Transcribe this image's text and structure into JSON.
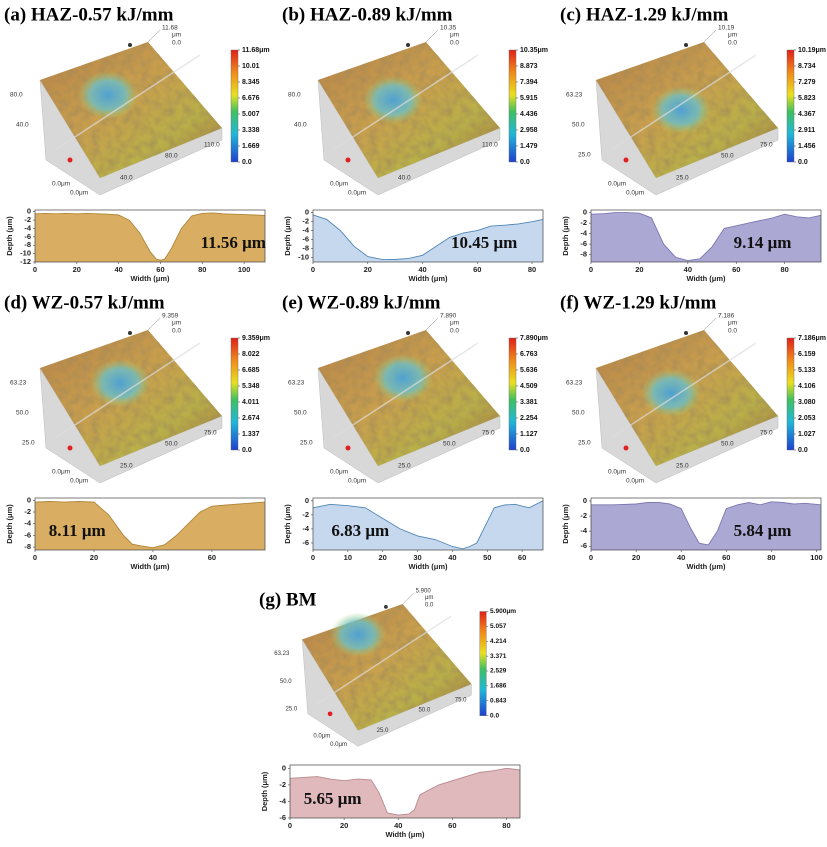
{
  "chart_data": [
    {
      "type": "area",
      "title": "(a) HAZ-0.57 kJ/mm",
      "annotation": "11.56 μm",
      "xlabel": "Width (μm)",
      "ylabel": "Depth (μm)",
      "color": "#d9ad62",
      "edge_color": "#b08638",
      "x": [
        0,
        5,
        10,
        15,
        20,
        25,
        30,
        35,
        40,
        45,
        50,
        55,
        58,
        60,
        62,
        65,
        70,
        75,
        80,
        85,
        90,
        95,
        100,
        105,
        110
      ],
      "values": [
        -0.5,
        -0.4,
        -0.5,
        -0.4,
        -0.5,
        -0.4,
        -0.5,
        -0.6,
        -0.8,
        -2,
        -5,
        -9.5,
        -11.3,
        -11.56,
        -11.3,
        -9,
        -4,
        -1,
        -0.4,
        -0.3,
        -0.5,
        -0.6,
        -0.7,
        -0.8,
        -0.9
      ],
      "xlim": [
        0,
        110
      ],
      "ylim": [
        -12,
        0.4
      ],
      "xticks": [
        0,
        20,
        40,
        60,
        80,
        100
      ],
      "yticks": [
        0,
        -2,
        -4,
        -6,
        -8,
        -10,
        -12
      ]
    },
    {
      "type": "area",
      "title": "(b) HAZ-0.89 kJ/mm",
      "annotation": "10.45 μm",
      "xlabel": "Width (μm)",
      "ylabel": "Depth (μm)",
      "color": "#c6d8ee",
      "edge_color": "#4f86b4",
      "x": [
        0,
        5,
        10,
        15,
        20,
        25,
        30,
        35,
        40,
        45,
        50,
        55,
        60,
        65,
        70,
        75,
        80,
        84
      ],
      "values": [
        -0.5,
        -1.5,
        -4,
        -7.5,
        -9.8,
        -10.4,
        -10.45,
        -10.2,
        -9.5,
        -7.5,
        -5.5,
        -4.5,
        -4,
        -3,
        -2.8,
        -2.5,
        -2,
        -1.5
      ],
      "xlim": [
        0,
        84
      ],
      "ylim": [
        -11,
        0.6
      ],
      "xticks": [
        0,
        20,
        40,
        60,
        80
      ],
      "yticks": [
        0,
        -2,
        -4,
        -6,
        -8,
        -10
      ]
    },
    {
      "type": "area",
      "title": "(c) HAZ-1.29 kJ/mm",
      "annotation": "9.14 μm",
      "xlabel": "Width (μm)",
      "ylabel": "Depth (μm)",
      "color": "#aba8d4",
      "edge_color": "#7c78b0",
      "x": [
        0,
        5,
        10,
        15,
        20,
        25,
        30,
        35,
        40,
        45,
        50,
        55,
        60,
        65,
        70,
        75,
        80,
        85,
        90,
        95
      ],
      "values": [
        -0.3,
        -0.2,
        0,
        0,
        -0.1,
        -1,
        -6,
        -8.5,
        -9.14,
        -8.8,
        -6.5,
        -3,
        -2.5,
        -2,
        -1.5,
        -1,
        -0.3,
        -0.8,
        -1,
        -0.5
      ],
      "xlim": [
        0,
        95
      ],
      "ylim": [
        -9.4,
        0.5
      ],
      "xticks": [
        0,
        20,
        40,
        60,
        80
      ],
      "yticks": [
        0,
        -2,
        -4,
        -6,
        -8
      ]
    },
    {
      "type": "area",
      "title": "(d) WZ-0.57 kJ/mm",
      "annotation": "8.11 μm",
      "xlabel": "Width (μm)",
      "ylabel": "Depth (μm)",
      "color": "#d9ad62",
      "edge_color": "#b08638",
      "x": [
        0,
        5,
        10,
        15,
        20,
        25,
        30,
        33,
        36,
        40,
        44,
        48,
        52,
        56,
        60,
        65,
        70,
        75,
        78
      ],
      "values": [
        -0.3,
        -0.2,
        -0.3,
        -0.2,
        -0.3,
        -2.5,
        -6,
        -7.5,
        -7.8,
        -8.11,
        -7.6,
        -6,
        -4,
        -2,
        -1,
        -0.8,
        -0.6,
        -0.4,
        -0.3
      ],
      "xlim": [
        0,
        78
      ],
      "ylim": [
        -8.5,
        0.4
      ],
      "xticks": [
        0,
        20,
        40,
        60
      ],
      "yticks": [
        0,
        -2,
        -4,
        -6,
        -8
      ]
    },
    {
      "type": "area",
      "title": "(e) WZ-0.89 kJ/mm",
      "annotation": "6.83 μm",
      "xlabel": "Width (μm)",
      "ylabel": "Depth (μm)",
      "color": "#c6d8ee",
      "edge_color": "#4f86b4",
      "x": [
        0,
        5,
        10,
        15,
        20,
        25,
        30,
        35,
        40,
        43,
        45,
        47,
        50,
        52,
        55,
        58,
        62,
        66
      ],
      "values": [
        -1,
        -0.5,
        -0.7,
        -1,
        -2.5,
        -4,
        -5,
        -5.5,
        -6.5,
        -6.83,
        -6.5,
        -6,
        -3,
        -1,
        -0.6,
        -0.5,
        -1,
        0
      ],
      "xlim": [
        0,
        66
      ],
      "ylim": [
        -7,
        0.4
      ],
      "xticks": [
        0,
        10,
        20,
        30,
        40,
        50,
        60
      ],
      "yticks": [
        0,
        -2,
        -4,
        -6
      ]
    },
    {
      "type": "area",
      "title": "(f) WZ-1.29 kJ/mm",
      "annotation": "5.84 μm",
      "xlabel": "Width (μm)",
      "ylabel": "Depth (μm)",
      "color": "#aba8d4",
      "edge_color": "#7c78b0",
      "x": [
        0,
        10,
        20,
        25,
        30,
        35,
        40,
        44,
        48,
        52,
        56,
        60,
        65,
        70,
        75,
        80,
        85,
        90,
        95,
        102
      ],
      "values": [
        -0.5,
        -0.5,
        -0.4,
        -0.2,
        -0.2,
        -0.4,
        -1,
        -3.5,
        -5.6,
        -5.84,
        -4,
        -1,
        -0.5,
        -0.2,
        -0.5,
        -0.1,
        -0.2,
        -0.4,
        -0.3,
        -0.5
      ],
      "xlim": [
        0,
        102
      ],
      "ylim": [
        -6.5,
        0.4
      ],
      "xticks": [
        0,
        20,
        40,
        60,
        80,
        100
      ],
      "yticks": [
        0,
        -2,
        -4,
        -6
      ]
    },
    {
      "type": "area",
      "title": "(g) BM",
      "annotation": "5.65 μm",
      "xlabel": "Width (μm)",
      "ylabel": "Depth (μm)",
      "color": "#dfb9bc",
      "edge_color": "#b88a8e",
      "x": [
        0,
        5,
        10,
        15,
        20,
        25,
        30,
        33,
        36,
        40,
        44,
        46,
        48,
        52,
        55,
        60,
        65,
        70,
        75,
        80,
        85
      ],
      "values": [
        -1.2,
        -1.1,
        -1,
        -1.3,
        -1.5,
        -1.3,
        -1.4,
        -3,
        -5.4,
        -5.65,
        -5.5,
        -5,
        -3.2,
        -2.5,
        -2,
        -1.5,
        -1,
        -0.5,
        -0.3,
        0,
        -0.2
      ],
      "xlim": [
        0,
        85
      ],
      "ylim": [
        -6,
        0.4
      ],
      "xticks": [
        0,
        20,
        40,
        60,
        80
      ],
      "yticks": [
        0,
        -2,
        -4,
        -6
      ]
    }
  ],
  "surfaces": [
    {
      "height": "11.68",
      "unit": "μm",
      "corner": "0.0",
      "left": [
        "80.0",
        "40.0"
      ],
      "origin": [
        "0.0μm",
        "0.0μm"
      ],
      "bottom": [
        "40.0",
        "80.0"
      ],
      "right": [
        "110.0"
      ],
      "colorbar": [
        {
          "value": 11.68,
          "label": "11.68μm"
        },
        10.01,
        8.345,
        6.676,
        5.007,
        3.338,
        1.669,
        {
          "value": 0,
          "label": "0.0"
        }
      ]
    },
    {
      "height": "10.35",
      "unit": "μm",
      "corner": "0.0",
      "left": [
        "80.0",
        "40.0"
      ],
      "origin": [
        "0.0μm",
        "0.0μm"
      ],
      "bottom": [
        "40.0"
      ],
      "right": [
        "110.0"
      ],
      "colorbar": [
        {
          "value": 10.35,
          "label": "10.35μm"
        },
        8.873,
        7.394,
        5.915,
        4.436,
        2.958,
        1.479,
        {
          "value": 0,
          "label": "0.0"
        }
      ]
    },
    {
      "height": "10.19",
      "unit": "μm",
      "corner": "0.0",
      "left": [
        "63.23",
        "50.0",
        "25.0"
      ],
      "origin": [
        "0.0μm",
        "0.0μm"
      ],
      "bottom": [
        "25.0",
        "50.0"
      ],
      "right": [
        "75.0"
      ],
      "colorbar": [
        {
          "value": 10.19,
          "label": "10.19μm"
        },
        8.734,
        7.279,
        5.823,
        4.367,
        2.911,
        1.456,
        {
          "value": 0,
          "label": "0.0"
        }
      ]
    },
    {
      "height": "9.359",
      "unit": "μm",
      "corner": "0.0",
      "left": [
        "63.23",
        "50.0",
        "25.0"
      ],
      "origin": [
        "0.0μm",
        "0.0μm"
      ],
      "bottom": [
        "25.0",
        "50.0"
      ],
      "right": [
        "75.0"
      ],
      "colorbar": [
        {
          "value": 9.359,
          "label": "9.359μm"
        },
        8.022,
        6.685,
        5.348,
        4.011,
        2.674,
        1.337,
        {
          "value": 0,
          "label": "0.0"
        }
      ]
    },
    {
      "height": "7.890",
      "unit": "μm",
      "corner": "0.0",
      "left": [
        "63.23",
        "50.0",
        "25.0"
      ],
      "origin": [
        "0.0μm",
        "0.0μm"
      ],
      "bottom": [
        "25.0",
        "50.0"
      ],
      "right": [
        "75.0"
      ],
      "colorbar": [
        {
          "value": 7.89,
          "label": "7.890μm"
        },
        6.763,
        5.636,
        4.509,
        3.381,
        2.254,
        1.127,
        {
          "value": 0,
          "label": "0.0"
        }
      ]
    },
    {
      "height": "7.186",
      "unit": "μm",
      "corner": "0.0",
      "left": [
        "63.23",
        "50.0",
        "25.0"
      ],
      "origin": [
        "0.0μm",
        "0.0μm"
      ],
      "bottom": [
        "25.0",
        "50.0"
      ],
      "right": [
        "75.0"
      ],
      "colorbar": [
        {
          "value": 7.186,
          "label": "7.186μm"
        },
        6.159,
        5.133,
        4.106,
        {
          "value": 3.08,
          "label": "3.080"
        },
        2.053,
        1.027,
        {
          "value": 0,
          "label": "0.0"
        }
      ]
    },
    {
      "height": "5.900",
      "unit": "μm",
      "corner": "0.0",
      "left": [
        "63.23",
        "50.0",
        "25.0"
      ],
      "origin": [
        "0.0μm",
        "0.0μm"
      ],
      "bottom": [
        "25.0",
        "50.0"
      ],
      "right": [
        "75.0"
      ],
      "colorbar": [
        {
          "value": 5.9,
          "label": "5.900μm"
        },
        5.057,
        4.214,
        3.371,
        2.529,
        1.686,
        0.843,
        {
          "value": 0,
          "label": "0.0"
        }
      ]
    }
  ]
}
